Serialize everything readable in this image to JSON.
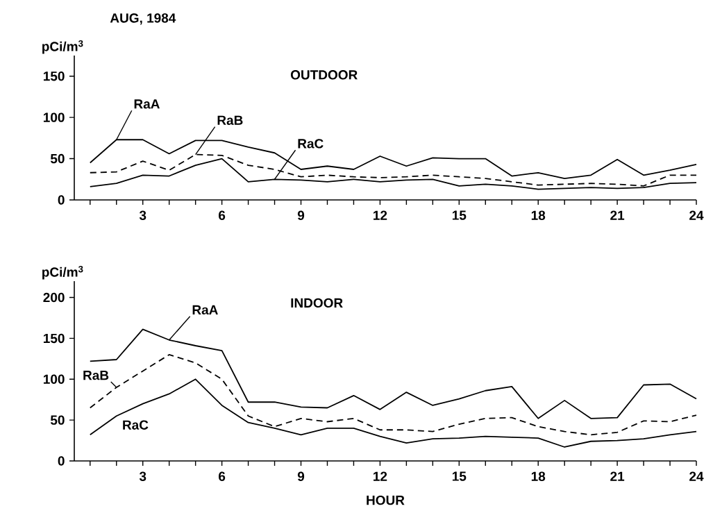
{
  "chart_data": [
    {
      "type": "line",
      "title": "AUG, 1984",
      "subtitle": "OUTDOOR",
      "ylabel": "pCi/m$^{3}$",
      "x": [
        1,
        2,
        3,
        4,
        5,
        6,
        7,
        8,
        9,
        10,
        11,
        12,
        13,
        14,
        15,
        16,
        17,
        18,
        19,
        20,
        21,
        22,
        23,
        24
      ],
      "series": [
        {
          "name": "RaA",
          "color": "#000000",
          "line_style": "solid",
          "values": [
            45,
            73,
            73,
            56,
            72,
            72,
            64,
            57,
            37,
            41,
            37,
            53,
            41,
            51,
            50,
            50,
            29,
            33,
            26,
            30,
            49,
            30,
            36,
            43
          ]
        },
        {
          "name": "RaB",
          "color": "#000000",
          "line_style": "dashed",
          "values": [
            33,
            34,
            47,
            36,
            55,
            54,
            42,
            37,
            28,
            30,
            28,
            27,
            28,
            30,
            28,
            26,
            22,
            18,
            19,
            20,
            19,
            17,
            30,
            30
          ]
        },
        {
          "name": "RaC",
          "color": "#000000",
          "line_style": "solid",
          "values": [
            16,
            20,
            30,
            29,
            42,
            50,
            22,
            25,
            24,
            22,
            25,
            22,
            24,
            25,
            17,
            19,
            17,
            13,
            14,
            15,
            14,
            15,
            20,
            21
          ]
        }
      ],
      "xlim": [
        0.4,
        24
      ],
      "ylim": [
        0,
        175
      ],
      "yticks": [
        0,
        50,
        100,
        150
      ],
      "xticks": [
        {
          "value": 1,
          "label": null
        },
        {
          "value": 2,
          "label": null
        },
        3,
        {
          "value": 4,
          "label": null
        },
        {
          "value": 5,
          "label": null
        },
        6,
        {
          "value": 7,
          "label": null
        },
        {
          "value": 8,
          "label": null
        },
        9,
        {
          "value": 10,
          "label": null
        },
        {
          "value": 11,
          "label": null
        },
        12,
        {
          "value": 13,
          "label": null
        },
        {
          "value": 14,
          "label": null
        },
        15,
        {
          "value": 16,
          "label": null
        },
        {
          "value": 17,
          "label": null
        },
        18,
        {
          "value": 19,
          "label": null
        },
        {
          "value": 20,
          "label": null
        },
        21,
        {
          "value": 22,
          "label": null
        },
        {
          "value": 23,
          "label": null
        },
        24
      ],
      "grid": false,
      "legend": false,
      "marker": "none"
    },
    {
      "type": "line",
      "subtitle": "INDOOR",
      "ylabel": "pCi/m$^{3}$",
      "xlabel": "HOUR",
      "x": [
        1,
        2,
        3,
        4,
        5,
        6,
        7,
        8,
        9,
        10,
        11,
        12,
        13,
        14,
        15,
        16,
        17,
        18,
        19,
        20,
        21,
        22,
        23,
        24
      ],
      "series": [
        {
          "name": "RaA",
          "color": "#000000",
          "line_style": "solid",
          "values": [
            122,
            124,
            161,
            148,
            141,
            135,
            72,
            72,
            66,
            65,
            80,
            63,
            84,
            68,
            76,
            86,
            91,
            52,
            74,
            52,
            53,
            93,
            94,
            76
          ]
        },
        {
          "name": "RaB",
          "color": "#000000",
          "line_style": "dashed",
          "values": [
            65,
            90,
            110,
            130,
            120,
            100,
            55,
            42,
            52,
            48,
            52,
            38,
            38,
            36,
            45,
            52,
            53,
            42,
            36,
            32,
            35,
            49,
            48,
            56
          ]
        },
        {
          "name": "RaC",
          "color": "#000000",
          "line_style": "solid",
          "values": [
            32,
            55,
            70,
            82,
            100,
            68,
            47,
            40,
            32,
            40,
            40,
            30,
            22,
            27,
            28,
            30,
            29,
            28,
            17,
            24,
            25,
            27,
            32,
            36
          ]
        }
      ],
      "xlim": [
        0.4,
        24
      ],
      "ylim": [
        0,
        220
      ],
      "yticks": [
        0,
        50,
        100,
        150,
        200
      ],
      "xticks": [
        {
          "value": 1,
          "label": null
        },
        {
          "value": 2,
          "label": null
        },
        3,
        {
          "value": 4,
          "label": null
        },
        {
          "value": 5,
          "label": null
        },
        6,
        {
          "value": 7,
          "label": null
        },
        {
          "value": 8,
          "label": null
        },
        9,
        {
          "value": 10,
          "label": null
        },
        {
          "value": 11,
          "label": null
        },
        12,
        {
          "value": 13,
          "label": null
        },
        {
          "value": 14,
          "label": null
        },
        15,
        {
          "value": 16,
          "label": null
        },
        {
          "value": 17,
          "label": null
        },
        18,
        {
          "value": 19,
          "label": null
        },
        {
          "value": 20,
          "label": null
        },
        21,
        {
          "value": 22,
          "label": null
        },
        {
          "value": 23,
          "label": null
        },
        24
      ],
      "grid": false,
      "legend": false,
      "marker": "none"
    }
  ]
}
